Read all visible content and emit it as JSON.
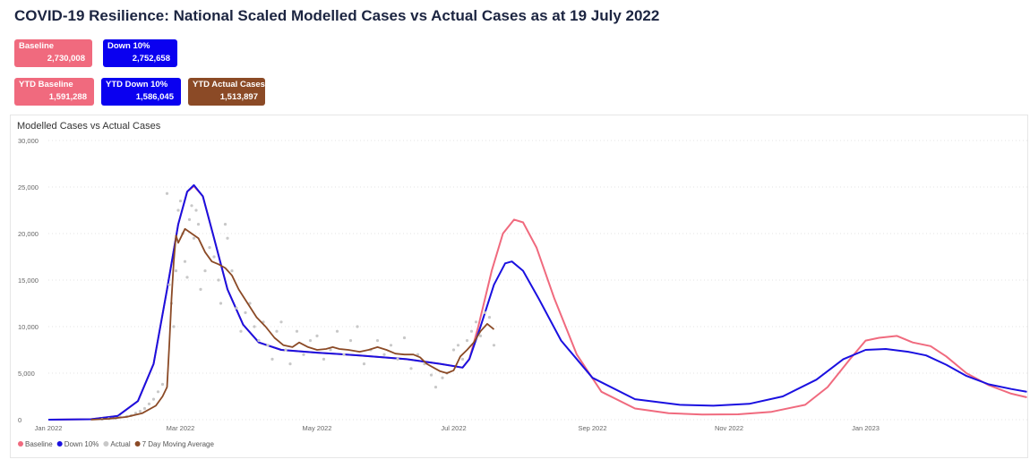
{
  "page": {
    "title": "COVID-19 Resilience:  National Scaled Modelled Cases vs Actual Cases as at 19 July 2022"
  },
  "kpis": {
    "baseline": {
      "label": "Baseline",
      "value": "2,730,008",
      "color": "#f06a7e"
    },
    "down10": {
      "label": "Down 10%",
      "value": "2,752,658",
      "color": "#0a00f0"
    },
    "ytd_baseline": {
      "label": "YTD Baseline",
      "value": "1,591,288",
      "color": "#f06a7e"
    },
    "ytd_down10": {
      "label": "YTD Down 10%",
      "value": "1,586,045",
      "color": "#0a00f0"
    },
    "ytd_actual": {
      "label": "YTD Actual Cases",
      "value": "1,513,897",
      "color": "#8b4a26"
    }
  },
  "chart_data": {
    "type": "line",
    "title": "Modelled Cases vs Actual Cases",
    "xlabel": "",
    "ylabel": "",
    "xlim": [
      "2022-01-01",
      "2023-03-15"
    ],
    "ylim": [
      0,
      30000
    ],
    "y_ticks": [
      0,
      5000,
      10000,
      15000,
      20000,
      25000,
      30000
    ],
    "y_tick_labels": [
      "0",
      "5,000",
      "10,000",
      "15,000",
      "20,000",
      "25,000",
      "30,000"
    ],
    "x_ticks": [
      "2022-01-01",
      "2022-03-01",
      "2022-05-01",
      "2022-07-01",
      "2022-09-01",
      "2022-11-01",
      "2023-01-01"
    ],
    "x_tick_labels": [
      "Jan 2022",
      "Mar 2022",
      "May 2022",
      "Jul 2022",
      "Sep 2022",
      "Nov 2022",
      "Jan 2023"
    ],
    "grid": true,
    "legend_position": "bottom-left",
    "series": [
      {
        "name": "Baseline",
        "type": "line",
        "color": "#f06a7e",
        "points": [
          [
            "2022-01-01",
            0
          ],
          [
            "2022-01-20",
            50
          ],
          [
            "2022-02-01",
            400
          ],
          [
            "2022-02-10",
            2000
          ],
          [
            "2022-02-17",
            6000
          ],
          [
            "2022-02-23",
            14000
          ],
          [
            "2022-02-28",
            21000
          ],
          [
            "2022-03-04",
            24500
          ],
          [
            "2022-03-07",
            25100
          ],
          [
            "2022-03-11",
            24000
          ],
          [
            "2022-03-16",
            19500
          ],
          [
            "2022-03-22",
            14000
          ],
          [
            "2022-03-29",
            10200
          ],
          [
            "2022-04-05",
            8300
          ],
          [
            "2022-04-15",
            7500
          ],
          [
            "2022-05-01",
            7200
          ],
          [
            "2022-05-20",
            6900
          ],
          [
            "2022-06-10",
            6500
          ],
          [
            "2022-06-25",
            6000
          ],
          [
            "2022-07-05",
            5600
          ],
          [
            "2022-07-08",
            6500
          ],
          [
            "2022-07-12",
            10000
          ],
          [
            "2022-07-18",
            16000
          ],
          [
            "2022-07-23",
            20000
          ],
          [
            "2022-07-28",
            21500
          ],
          [
            "2022-08-01",
            21200
          ],
          [
            "2022-08-07",
            18500
          ],
          [
            "2022-08-15",
            13000
          ],
          [
            "2022-08-25",
            7000
          ],
          [
            "2022-09-05",
            3000
          ],
          [
            "2022-09-20",
            1200
          ],
          [
            "2022-10-05",
            700
          ],
          [
            "2022-10-20",
            550
          ],
          [
            "2022-11-05",
            580
          ],
          [
            "2022-11-20",
            850
          ],
          [
            "2022-12-05",
            1600
          ],
          [
            "2022-12-15",
            3500
          ],
          [
            "2022-12-25",
            6500
          ],
          [
            "2023-01-01",
            8500
          ],
          [
            "2023-01-07",
            8800
          ],
          [
            "2023-01-15",
            9000
          ],
          [
            "2023-01-22",
            8300
          ],
          [
            "2023-01-30",
            7900
          ],
          [
            "2023-02-06",
            6800
          ],
          [
            "2023-02-15",
            5000
          ],
          [
            "2023-02-25",
            3700
          ],
          [
            "2023-03-07",
            2800
          ],
          [
            "2023-03-14",
            2400
          ]
        ]
      },
      {
        "name": "Down 10%",
        "type": "line",
        "color": "#1a10e0",
        "points": [
          [
            "2022-01-01",
            0
          ],
          [
            "2022-01-20",
            50
          ],
          [
            "2022-02-01",
            400
          ],
          [
            "2022-02-10",
            2000
          ],
          [
            "2022-02-17",
            6000
          ],
          [
            "2022-02-23",
            14000
          ],
          [
            "2022-02-28",
            21000
          ],
          [
            "2022-03-04",
            24500
          ],
          [
            "2022-03-07",
            25200
          ],
          [
            "2022-03-11",
            24000
          ],
          [
            "2022-03-16",
            19500
          ],
          [
            "2022-03-22",
            14000
          ],
          [
            "2022-03-29",
            10200
          ],
          [
            "2022-04-05",
            8300
          ],
          [
            "2022-04-15",
            7500
          ],
          [
            "2022-05-01",
            7200
          ],
          [
            "2022-05-20",
            6900
          ],
          [
            "2022-06-10",
            6500
          ],
          [
            "2022-06-25",
            6000
          ],
          [
            "2022-07-05",
            5600
          ],
          [
            "2022-07-08",
            6500
          ],
          [
            "2022-07-13",
            10000
          ],
          [
            "2022-07-19",
            14500
          ],
          [
            "2022-07-24",
            16800
          ],
          [
            "2022-07-27",
            17000
          ],
          [
            "2022-08-01",
            16000
          ],
          [
            "2022-08-08",
            13000
          ],
          [
            "2022-08-18",
            8500
          ],
          [
            "2022-09-01",
            4500
          ],
          [
            "2022-09-20",
            2200
          ],
          [
            "2022-10-10",
            1600
          ],
          [
            "2022-10-25",
            1500
          ],
          [
            "2022-11-10",
            1700
          ],
          [
            "2022-11-25",
            2500
          ],
          [
            "2022-12-10",
            4300
          ],
          [
            "2022-12-22",
            6500
          ],
          [
            "2023-01-01",
            7500
          ],
          [
            "2023-01-10",
            7600
          ],
          [
            "2023-01-20",
            7300
          ],
          [
            "2023-01-28",
            6900
          ],
          [
            "2023-02-06",
            5900
          ],
          [
            "2023-02-15",
            4700
          ],
          [
            "2023-02-25",
            3800
          ],
          [
            "2023-03-07",
            3300
          ],
          [
            "2023-03-14",
            3000
          ]
        ]
      },
      {
        "name": "Actual",
        "type": "scatter",
        "color": "#c8c8c8",
        "points": [
          [
            "2022-01-25",
            50
          ],
          [
            "2022-01-28",
            100
          ],
          [
            "2022-01-31",
            150
          ],
          [
            "2022-02-02",
            300
          ],
          [
            "2022-02-05",
            350
          ],
          [
            "2022-02-07",
            450
          ],
          [
            "2022-02-09",
            700
          ],
          [
            "2022-02-11",
            900
          ],
          [
            "2022-02-13",
            1200
          ],
          [
            "2022-02-15",
            1700
          ],
          [
            "2022-02-17",
            2200
          ],
          [
            "2022-02-19",
            3000
          ],
          [
            "2022-02-21",
            3800
          ],
          [
            "2022-02-23",
            24300
          ],
          [
            "2022-02-24",
            14500
          ],
          [
            "2022-02-25",
            12500
          ],
          [
            "2022-02-26",
            10000
          ],
          [
            "2022-02-27",
            16000
          ],
          [
            "2022-02-28",
            22500
          ],
          [
            "2022-03-01",
            23500
          ],
          [
            "2022-03-02",
            20000
          ],
          [
            "2022-03-03",
            17000
          ],
          [
            "2022-03-04",
            15300
          ],
          [
            "2022-03-05",
            21500
          ],
          [
            "2022-03-06",
            23000
          ],
          [
            "2022-03-07",
            19500
          ],
          [
            "2022-03-08",
            22500
          ],
          [
            "2022-03-09",
            21000
          ],
          [
            "2022-03-10",
            14000
          ],
          [
            "2022-03-12",
            16000
          ],
          [
            "2022-03-14",
            18500
          ],
          [
            "2022-03-16",
            17500
          ],
          [
            "2022-03-18",
            15000
          ],
          [
            "2022-03-19",
            12500
          ],
          [
            "2022-03-21",
            21000
          ],
          [
            "2022-03-22",
            19500
          ],
          [
            "2022-03-24",
            16000
          ],
          [
            "2022-03-26",
            12000
          ],
          [
            "2022-03-28",
            9500
          ],
          [
            "2022-03-30",
            11500
          ],
          [
            "2022-04-01",
            12500
          ],
          [
            "2022-04-03",
            10000
          ],
          [
            "2022-04-05",
            8500
          ],
          [
            "2022-04-07",
            10500
          ],
          [
            "2022-04-09",
            8000
          ],
          [
            "2022-04-11",
            6500
          ],
          [
            "2022-04-13",
            9500
          ],
          [
            "2022-04-15",
            10500
          ],
          [
            "2022-04-17",
            7500
          ],
          [
            "2022-04-19",
            6000
          ],
          [
            "2022-04-22",
            9500
          ],
          [
            "2022-04-25",
            7000
          ],
          [
            "2022-04-28",
            8500
          ],
          [
            "2022-05-01",
            9000
          ],
          [
            "2022-05-04",
            6500
          ],
          [
            "2022-05-07",
            7500
          ],
          [
            "2022-05-10",
            9500
          ],
          [
            "2022-05-13",
            7000
          ],
          [
            "2022-05-16",
            8500
          ],
          [
            "2022-05-19",
            10000
          ],
          [
            "2022-05-22",
            6000
          ],
          [
            "2022-05-25",
            7500
          ],
          [
            "2022-05-28",
            8500
          ],
          [
            "2022-05-31",
            7000
          ],
          [
            "2022-06-03",
            8000
          ],
          [
            "2022-06-06",
            6500
          ],
          [
            "2022-06-09",
            8800
          ],
          [
            "2022-06-12",
            5500
          ],
          [
            "2022-06-15",
            7000
          ],
          [
            "2022-06-18",
            6000
          ],
          [
            "2022-06-21",
            4800
          ],
          [
            "2022-06-23",
            3500
          ],
          [
            "2022-06-26",
            4500
          ],
          [
            "2022-06-28",
            5000
          ],
          [
            "2022-07-01",
            7500
          ],
          [
            "2022-07-03",
            8000
          ],
          [
            "2022-07-05",
            6500
          ],
          [
            "2022-07-07",
            8500
          ],
          [
            "2022-07-09",
            9500
          ],
          [
            "2022-07-11",
            10500
          ],
          [
            "2022-07-13",
            9000
          ],
          [
            "2022-07-15",
            11500
          ],
          [
            "2022-07-17",
            11000
          ],
          [
            "2022-07-19",
            8000
          ]
        ]
      },
      {
        "name": "7 Day Moving Average",
        "type": "line",
        "color": "#8b4a26",
        "points": [
          [
            "2022-01-20",
            0
          ],
          [
            "2022-01-28",
            100
          ],
          [
            "2022-02-05",
            300
          ],
          [
            "2022-02-12",
            700
          ],
          [
            "2022-02-18",
            1500
          ],
          [
            "2022-02-21",
            2500
          ],
          [
            "2022-02-23",
            3500
          ],
          [
            "2022-02-24",
            8000
          ],
          [
            "2022-02-25",
            13000
          ],
          [
            "2022-02-26",
            17000
          ],
          [
            "2022-02-27",
            19800
          ],
          [
            "2022-02-28",
            19000
          ],
          [
            "2022-03-01",
            19500
          ],
          [
            "2022-03-03",
            20500
          ],
          [
            "2022-03-06",
            20000
          ],
          [
            "2022-03-09",
            19500
          ],
          [
            "2022-03-12",
            18000
          ],
          [
            "2022-03-15",
            17000
          ],
          [
            "2022-03-18",
            16700
          ],
          [
            "2022-03-21",
            16300
          ],
          [
            "2022-03-24",
            15500
          ],
          [
            "2022-03-27",
            14000
          ],
          [
            "2022-03-31",
            12500
          ],
          [
            "2022-04-04",
            11000
          ],
          [
            "2022-04-08",
            10000
          ],
          [
            "2022-04-12",
            8800
          ],
          [
            "2022-04-16",
            8000
          ],
          [
            "2022-04-20",
            7800
          ],
          [
            "2022-04-23",
            8300
          ],
          [
            "2022-04-27",
            7800
          ],
          [
            "2022-05-01",
            7500
          ],
          [
            "2022-05-05",
            7600
          ],
          [
            "2022-05-08",
            7800
          ],
          [
            "2022-05-11",
            7600
          ],
          [
            "2022-05-15",
            7500
          ],
          [
            "2022-05-20",
            7300
          ],
          [
            "2022-05-24",
            7500
          ],
          [
            "2022-05-28",
            7800
          ],
          [
            "2022-06-01",
            7500
          ],
          [
            "2022-06-05",
            7100
          ],
          [
            "2022-06-09",
            7000
          ],
          [
            "2022-06-13",
            7000
          ],
          [
            "2022-06-16",
            6700
          ],
          [
            "2022-06-19",
            6000
          ],
          [
            "2022-06-22",
            5600
          ],
          [
            "2022-06-25",
            5200
          ],
          [
            "2022-06-28",
            5000
          ],
          [
            "2022-07-01",
            5300
          ],
          [
            "2022-07-04",
            6800
          ],
          [
            "2022-07-07",
            7500
          ],
          [
            "2022-07-10",
            8300
          ],
          [
            "2022-07-13",
            9500
          ],
          [
            "2022-07-16",
            10300
          ],
          [
            "2022-07-19",
            9700
          ]
        ]
      }
    ]
  }
}
